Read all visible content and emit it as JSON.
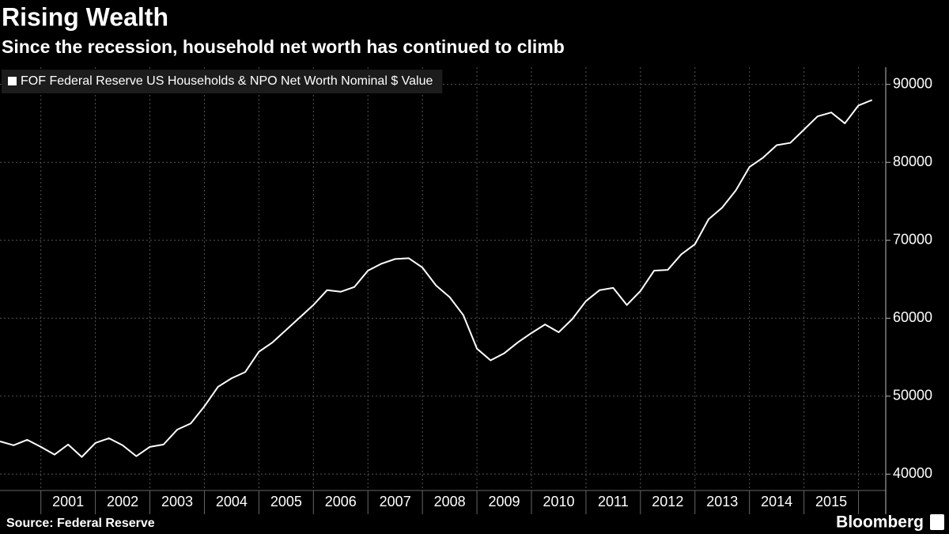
{
  "chart_data": {
    "type": "line",
    "title": "Rising Wealth",
    "subtitle": "Since the recession, household net worth has continued to climb",
    "source": "Source: Federal Reserve",
    "brand": "Bloomberg",
    "x": [
      2000.25,
      2000.5,
      2000.75,
      2001,
      2001.25,
      2001.5,
      2001.75,
      2002,
      2002.25,
      2002.5,
      2002.75,
      2003,
      2003.25,
      2003.5,
      2003.75,
      2004,
      2004.25,
      2004.5,
      2004.75,
      2005,
      2005.25,
      2005.5,
      2005.75,
      2006,
      2006.25,
      2006.5,
      2006.75,
      2007,
      2007.25,
      2007.5,
      2007.75,
      2008,
      2008.25,
      2008.5,
      2008.75,
      2009,
      2009.25,
      2009.5,
      2009.75,
      2010,
      2010.25,
      2010.5,
      2010.75,
      2011,
      2011.25,
      2011.5,
      2011.75,
      2012,
      2012.25,
      2012.5,
      2012.75,
      2013,
      2013.25,
      2013.5,
      2013.75,
      2014,
      2014.25,
      2014.5,
      2014.75,
      2015,
      2015.25,
      2015.5,
      2015.75,
      2016,
      2016.25
    ],
    "series": [
      {
        "name": "FOF Federal Reserve US Households & NPO Net Worth Nominal $ Value",
        "color": "#ffffff",
        "values": [
          44200,
          43700,
          44400,
          43500,
          42500,
          43800,
          42200,
          44000,
          44600,
          43700,
          42300,
          43500,
          43800,
          45700,
          46500,
          48700,
          51200,
          52300,
          53100,
          55700,
          56900,
          58500,
          60100,
          61700,
          63600,
          63400,
          64000,
          66100,
          67000,
          67600,
          67700,
          66500,
          64200,
          62700,
          60400,
          56100,
          54600,
          55500,
          56900,
          58100,
          59200,
          58200,
          59900,
          62200,
          63600,
          63900,
          61700,
          63500,
          66100,
          66200,
          68200,
          69500,
          72700,
          74200,
          76400,
          79400,
          80600,
          82200,
          82500,
          84200,
          85900,
          86400,
          85000,
          87300,
          88000
        ]
      }
    ],
    "xlim": [
      2000.25,
      2016.5
    ],
    "xticks": [
      2001,
      2002,
      2003,
      2004,
      2005,
      2006,
      2007,
      2008,
      2009,
      2010,
      2011,
      2012,
      2013,
      2014,
      2015
    ],
    "ylim": [
      37900,
      92200
    ],
    "yticks": [
      40000,
      50000,
      60000,
      70000,
      80000,
      90000
    ],
    "grid": true,
    "legend": "top-left"
  }
}
